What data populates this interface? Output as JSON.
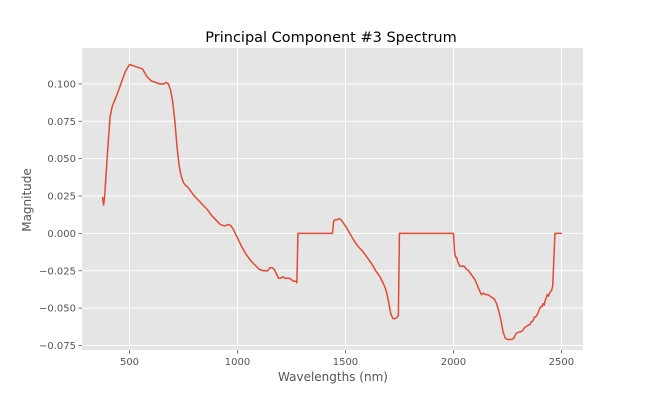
{
  "chart_data": {
    "type": "line",
    "title": "Principal Component #3 Spectrum",
    "xlabel": "Wavelengths (nm)",
    "ylabel": "Magnitude",
    "xlim": [
      280,
      2600
    ],
    "ylim": [
      -0.078,
      0.124
    ],
    "grid": true,
    "background": "#e5e5e5",
    "line_color": "#e24a33",
    "xticks": [
      500,
      1000,
      1500,
      2000,
      2500
    ],
    "xtick_labels": [
      "500",
      "1000",
      "1500",
      "2000",
      "2500"
    ],
    "yticks": [
      -0.075,
      -0.05,
      -0.025,
      0.0,
      0.025,
      0.05,
      0.075,
      0.1
    ],
    "ytick_labels": [
      "−0.075",
      "−0.050",
      "−0.025",
      "0.000",
      "0.025",
      "0.050",
      "0.075",
      "0.100"
    ],
    "series": [
      {
        "x": [
          375,
          380,
          385,
          390,
          400,
          410,
          420,
          440,
          460,
          480,
          500,
          520,
          540,
          560,
          580,
          600,
          620,
          640,
          660,
          670,
          680,
          690,
          700,
          710,
          720,
          730,
          740,
          750,
          760,
          770,
          780,
          800,
          820,
          840,
          860,
          880,
          900,
          920,
          940,
          960,
          970,
          980,
          990,
          1000,
          1020,
          1040,
          1060,
          1080,
          1100,
          1120,
          1140,
          1150,
          1160,
          1170,
          1180,
          1190,
          1200,
          1210,
          1220,
          1230,
          1240,
          1250,
          1260,
          1270,
          1275,
          1280,
          1300,
          1350,
          1400,
          1440,
          1445,
          1450,
          1460,
          1470,
          1480,
          1490,
          1500,
          1520,
          1540,
          1560,
          1580,
          1600,
          1620,
          1640,
          1660,
          1670,
          1680,
          1690,
          1700,
          1710,
          1720,
          1730,
          1740,
          1745,
          1750,
          1800,
          1850,
          1900,
          1950,
          2000,
          2005,
          2010,
          2015,
          2020,
          2030,
          2040,
          2050,
          2060,
          2070,
          2080,
          2100,
          2120,
          2130,
          2140,
          2150,
          2160,
          2170,
          2180,
          2190,
          2200,
          2210,
          2220,
          2230,
          2240,
          2250,
          2260,
          2270,
          2280,
          2290,
          2300,
          2310,
          2320,
          2330,
          2340,
          2350,
          2355,
          2360,
          2365,
          2370,
          2375,
          2380,
          2385,
          2390,
          2395,
          2400,
          2405,
          2410,
          2415,
          2420,
          2425,
          2430,
          2435,
          2440,
          2445,
          2450,
          2455,
          2460,
          2470,
          2480,
          2490,
          2500
        ],
        "y": [
          0.024,
          0.019,
          0.025,
          0.036,
          0.058,
          0.078,
          0.085,
          0.092,
          0.1,
          0.108,
          0.113,
          0.112,
          0.111,
          0.11,
          0.105,
          0.102,
          0.101,
          0.1,
          0.1,
          0.101,
          0.1,
          0.096,
          0.088,
          0.075,
          0.058,
          0.045,
          0.038,
          0.034,
          0.032,
          0.031,
          0.029,
          0.025,
          0.022,
          0.019,
          0.016,
          0.012,
          0.009,
          0.006,
          0.005,
          0.006,
          0.005,
          0.003,
          0.0,
          -0.003,
          -0.009,
          -0.014,
          -0.018,
          -0.021,
          -0.024,
          -0.025,
          -0.025,
          -0.023,
          -0.023,
          -0.024,
          -0.027,
          -0.03,
          -0.03,
          -0.029,
          -0.03,
          -0.03,
          -0.03,
          -0.031,
          -0.032,
          -0.032,
          -0.033,
          0.0,
          0.0,
          0.0,
          0.0,
          0.0,
          0.008,
          0.009,
          0.009,
          0.01,
          0.009,
          0.007,
          0.005,
          0.0,
          -0.005,
          -0.009,
          -0.012,
          -0.016,
          -0.02,
          -0.025,
          -0.029,
          -0.032,
          -0.035,
          -0.039,
          -0.046,
          -0.054,
          -0.057,
          -0.057,
          -0.056,
          -0.055,
          0.0,
          0.0,
          0.0,
          0.0,
          0.0,
          0.0,
          -0.012,
          -0.016,
          -0.016,
          -0.019,
          -0.022,
          -0.022,
          -0.022,
          -0.024,
          -0.025,
          -0.027,
          -0.031,
          -0.038,
          -0.041,
          -0.04,
          -0.041,
          -0.041,
          -0.042,
          -0.043,
          -0.044,
          -0.047,
          -0.052,
          -0.058,
          -0.066,
          -0.07,
          -0.071,
          -0.071,
          -0.071,
          -0.07,
          -0.067,
          -0.066,
          -0.066,
          -0.065,
          -0.063,
          -0.062,
          -0.061,
          -0.061,
          -0.059,
          -0.059,
          -0.058,
          -0.056,
          -0.056,
          -0.055,
          -0.054,
          -0.052,
          -0.05,
          -0.049,
          -0.049,
          -0.047,
          -0.048,
          -0.045,
          -0.043,
          -0.041,
          -0.042,
          -0.04,
          -0.039,
          -0.038,
          -0.035,
          0.0,
          0.0,
          0.0,
          0.0
        ]
      }
    ]
  }
}
